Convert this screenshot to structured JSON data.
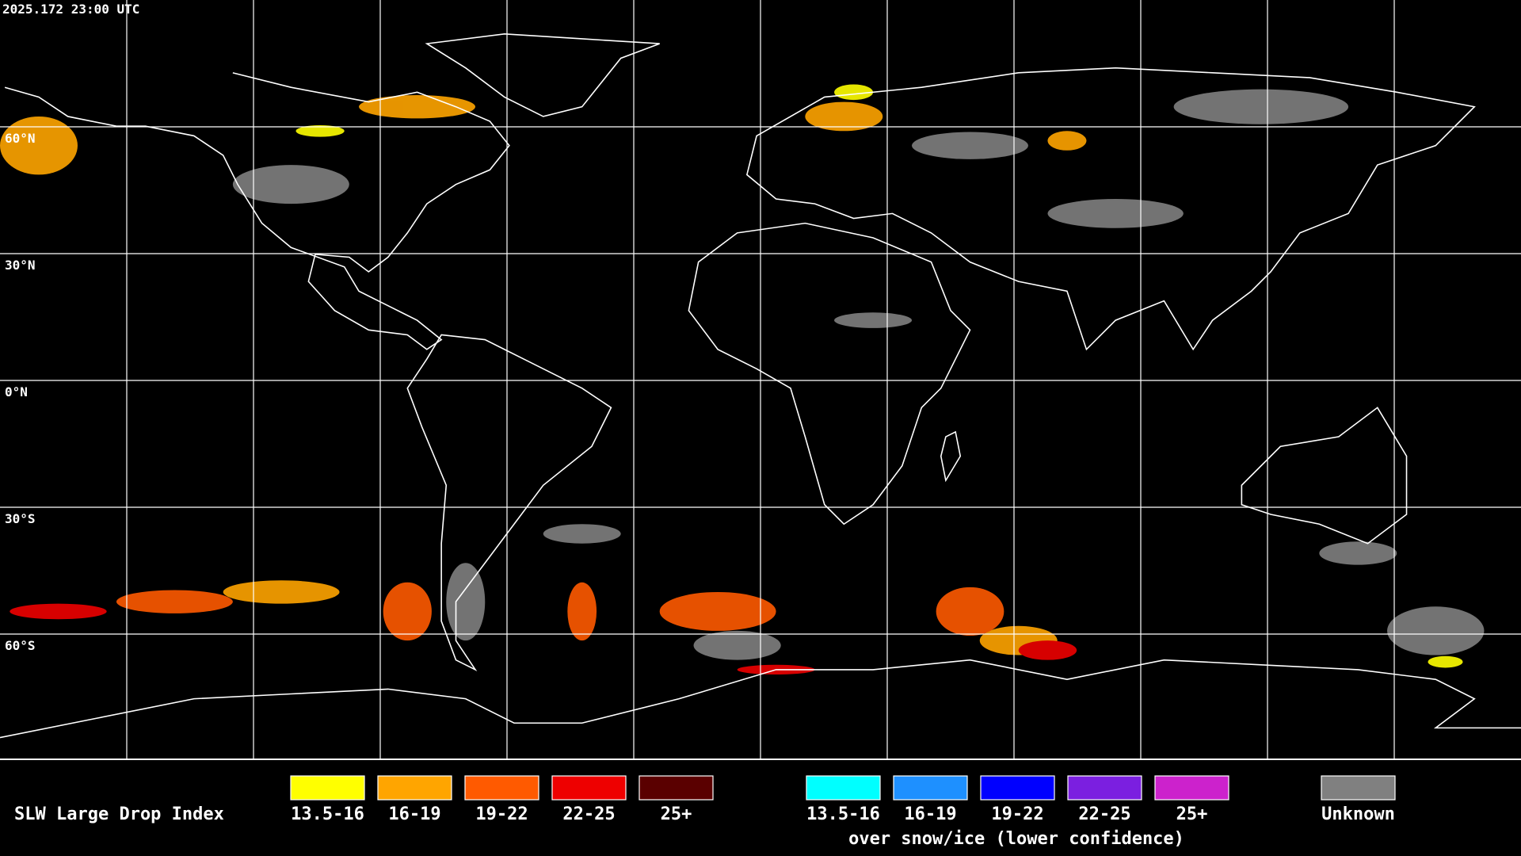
{
  "header": {
    "timestamp": "2025.172 23:00 UTC"
  },
  "map": {
    "lat_labels": [
      "60°N",
      "30°N",
      "0°N",
      "30°S",
      "60°S"
    ]
  },
  "legend": {
    "title": "SLW Large Drop Index",
    "main": [
      {
        "label": "13.5-16",
        "color": "#ffff00"
      },
      {
        "label": "16-19",
        "color": "#ffa500"
      },
      {
        "label": "19-22",
        "color": "#ff5a00"
      },
      {
        "label": "22-25",
        "color": "#ee0000"
      },
      {
        "label": "25+",
        "color": "#5a0000"
      }
    ],
    "snow_ice": [
      {
        "label": "13.5-16",
        "color": "#00ffff"
      },
      {
        "label": "16-19",
        "color": "#1e90ff"
      },
      {
        "label": "19-22",
        "color": "#0000ff"
      },
      {
        "label": "22-25",
        "color": "#7b1fe0"
      },
      {
        "label": "25+",
        "color": "#cc22cc"
      }
    ],
    "snow_ice_note": "over snow/ice (lower confidence)",
    "unknown": {
      "label": "Unknown",
      "color": "#808080"
    }
  }
}
